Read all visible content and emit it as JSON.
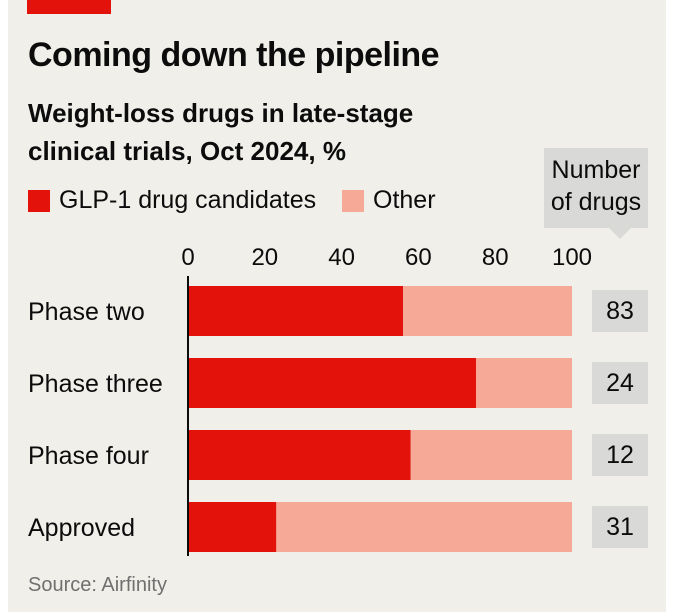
{
  "header": {
    "title": "Coming down the pipeline",
    "subtitle": "Weight-loss drugs in late-stage clinical trials, Oct 2024, %"
  },
  "legend": {
    "items": [
      {
        "label": "GLP-1 drug candidates",
        "color": "#e3120b"
      },
      {
        "label": "Other",
        "color": "#f6a997"
      }
    ]
  },
  "count_header": "Number of drugs",
  "source": "Source: Airfinity",
  "colors": {
    "glp1": "#e3120b",
    "other": "#f6a997",
    "background": "#f0efe9",
    "count_box": "#d9d9d7"
  },
  "chart_data": {
    "type": "bar",
    "orientation": "horizontal",
    "stacked": true,
    "categories": [
      "Phase two",
      "Phase three",
      "Phase four",
      "Approved"
    ],
    "series": [
      {
        "name": "GLP-1 drug candidates",
        "values": [
          56,
          75,
          58,
          23
        ]
      },
      {
        "name": "Other",
        "values": [
          44,
          25,
          42,
          77
        ]
      }
    ],
    "counts": [
      "83",
      "24",
      "12",
      "31"
    ],
    "xlim": [
      0,
      100
    ],
    "xticks": [
      "0",
      "20",
      "40",
      "60",
      "80",
      "100"
    ],
    "xaxis_position": "top",
    "grid": false,
    "legend_position": "top-left"
  }
}
